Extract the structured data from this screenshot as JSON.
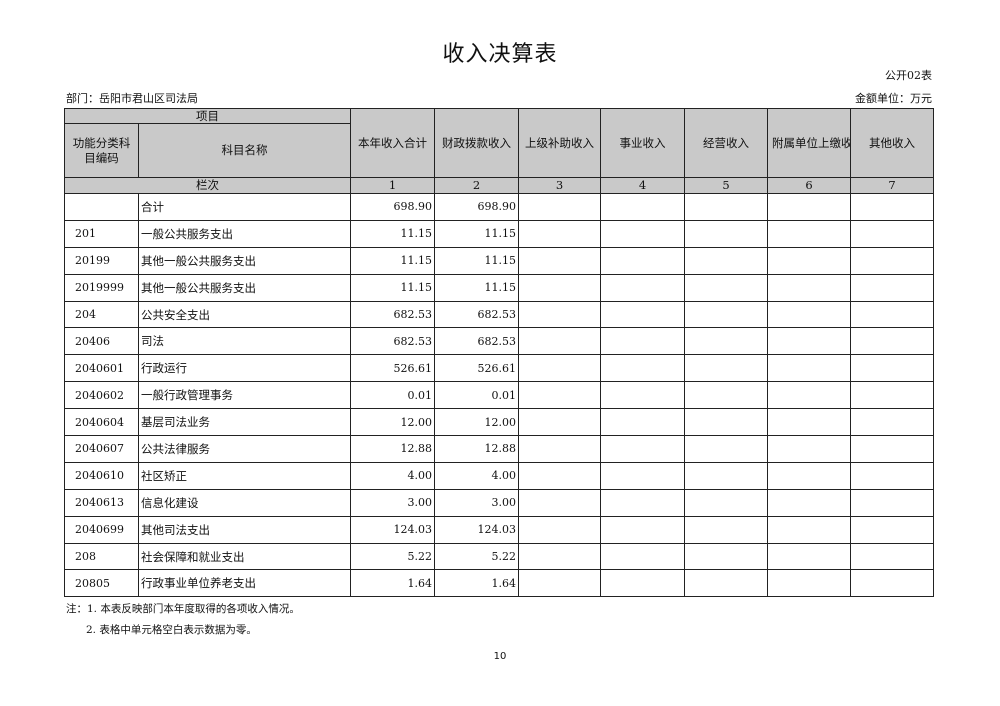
{
  "title": "收入决算表",
  "form_no": "公开02表",
  "department": "部门：岳阳市君山区司法局",
  "unit": "金额单位：万元",
  "header": {
    "project": "项目",
    "code": "功能分类科目编码",
    "name": "科目名称",
    "columns": [
      "本年收入合计",
      "财政拨款收入",
      "上级补助收入",
      "事业收入",
      "经营收入",
      "附属单位上缴收入",
      "其他收入"
    ],
    "row_label": "栏次",
    "column_numbers": [
      "1",
      "2",
      "3",
      "4",
      "5",
      "6",
      "7"
    ]
  },
  "rows": [
    {
      "code": "",
      "name": "合计",
      "values": [
        "698.90",
        "698.90",
        "",
        "",
        "",
        "",
        ""
      ]
    },
    {
      "code": "201",
      "name": "一般公共服务支出",
      "values": [
        "11.15",
        "11.15",
        "",
        "",
        "",
        "",
        ""
      ]
    },
    {
      "code": "20199",
      "name": "其他一般公共服务支出",
      "values": [
        "11.15",
        "11.15",
        "",
        "",
        "",
        "",
        ""
      ]
    },
    {
      "code": "2019999",
      "name": "其他一般公共服务支出",
      "values": [
        "11.15",
        "11.15",
        "",
        "",
        "",
        "",
        ""
      ]
    },
    {
      "code": "204",
      "name": "公共安全支出",
      "values": [
        "682.53",
        "682.53",
        "",
        "",
        "",
        "",
        ""
      ]
    },
    {
      "code": "20406",
      "name": "司法",
      "values": [
        "682.53",
        "682.53",
        "",
        "",
        "",
        "",
        ""
      ]
    },
    {
      "code": "2040601",
      "name": "行政运行",
      "values": [
        "526.61",
        "526.61",
        "",
        "",
        "",
        "",
        ""
      ]
    },
    {
      "code": "2040602",
      "name": "一般行政管理事务",
      "values": [
        "0.01",
        "0.01",
        "",
        "",
        "",
        "",
        ""
      ]
    },
    {
      "code": "2040604",
      "name": "基层司法业务",
      "values": [
        "12.00",
        "12.00",
        "",
        "",
        "",
        "",
        ""
      ]
    },
    {
      "code": "2040607",
      "name": "公共法律服务",
      "values": [
        "12.88",
        "12.88",
        "",
        "",
        "",
        "",
        ""
      ]
    },
    {
      "code": "2040610",
      "name": "社区矫正",
      "values": [
        "4.00",
        "4.00",
        "",
        "",
        "",
        "",
        ""
      ]
    },
    {
      "code": "2040613",
      "name": "信息化建设",
      "values": [
        "3.00",
        "3.00",
        "",
        "",
        "",
        "",
        ""
      ]
    },
    {
      "code": "2040699",
      "name": "其他司法支出",
      "values": [
        "124.03",
        "124.03",
        "",
        "",
        "",
        "",
        ""
      ]
    },
    {
      "code": "208",
      "name": "社会保障和就业支出",
      "values": [
        "5.22",
        "5.22",
        "",
        "",
        "",
        "",
        ""
      ]
    },
    {
      "code": "20805",
      "name": "行政事业单位养老支出",
      "values": [
        "1.64",
        "1.64",
        "",
        "",
        "",
        "",
        ""
      ]
    }
  ],
  "notes": [
    "注：1. 本表反映部门本年度取得的各项收入情况。",
    "2. 表格中单元格空白表示数据为零。"
  ],
  "page_number": "10"
}
